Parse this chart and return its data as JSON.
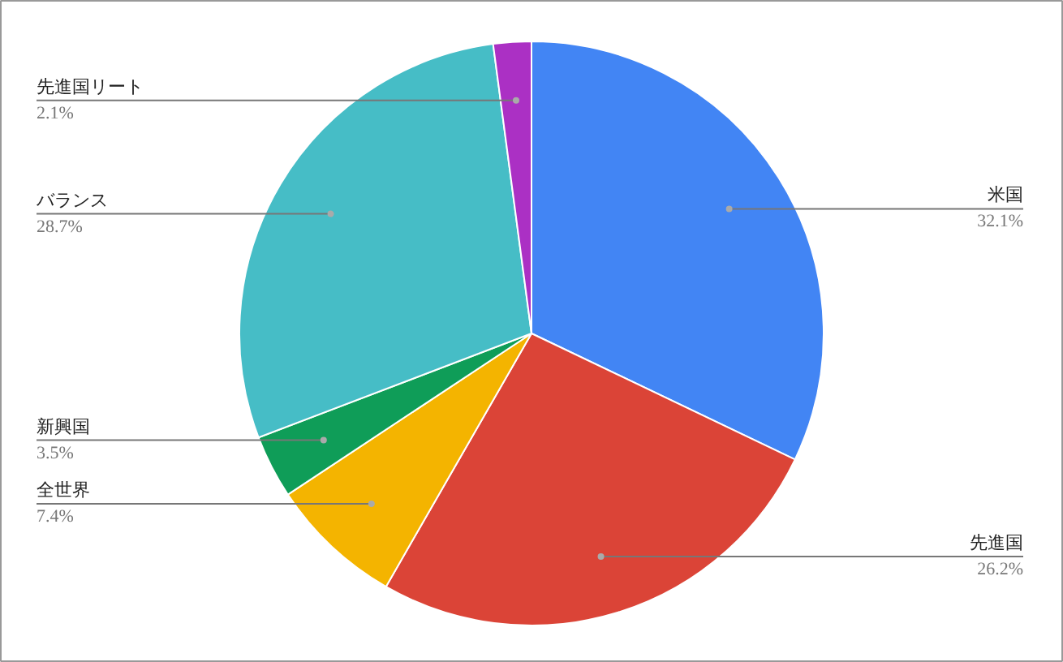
{
  "chart_data": {
    "type": "pie",
    "categories": [
      "米国",
      "先進国",
      "全世界",
      "新興国",
      "バランス",
      "先進国リート"
    ],
    "values": [
      32.1,
      26.2,
      7.4,
      3.5,
      28.7,
      2.1
    ],
    "colors": [
      "#4285f4",
      "#db4437",
      "#f4b400",
      "#0f9d58",
      "#46bdc6",
      "#ab30c4"
    ],
    "value_labels": [
      "32.1%",
      "26.2%",
      "7.4%",
      "3.5%",
      "28.7%",
      "2.1%"
    ]
  }
}
